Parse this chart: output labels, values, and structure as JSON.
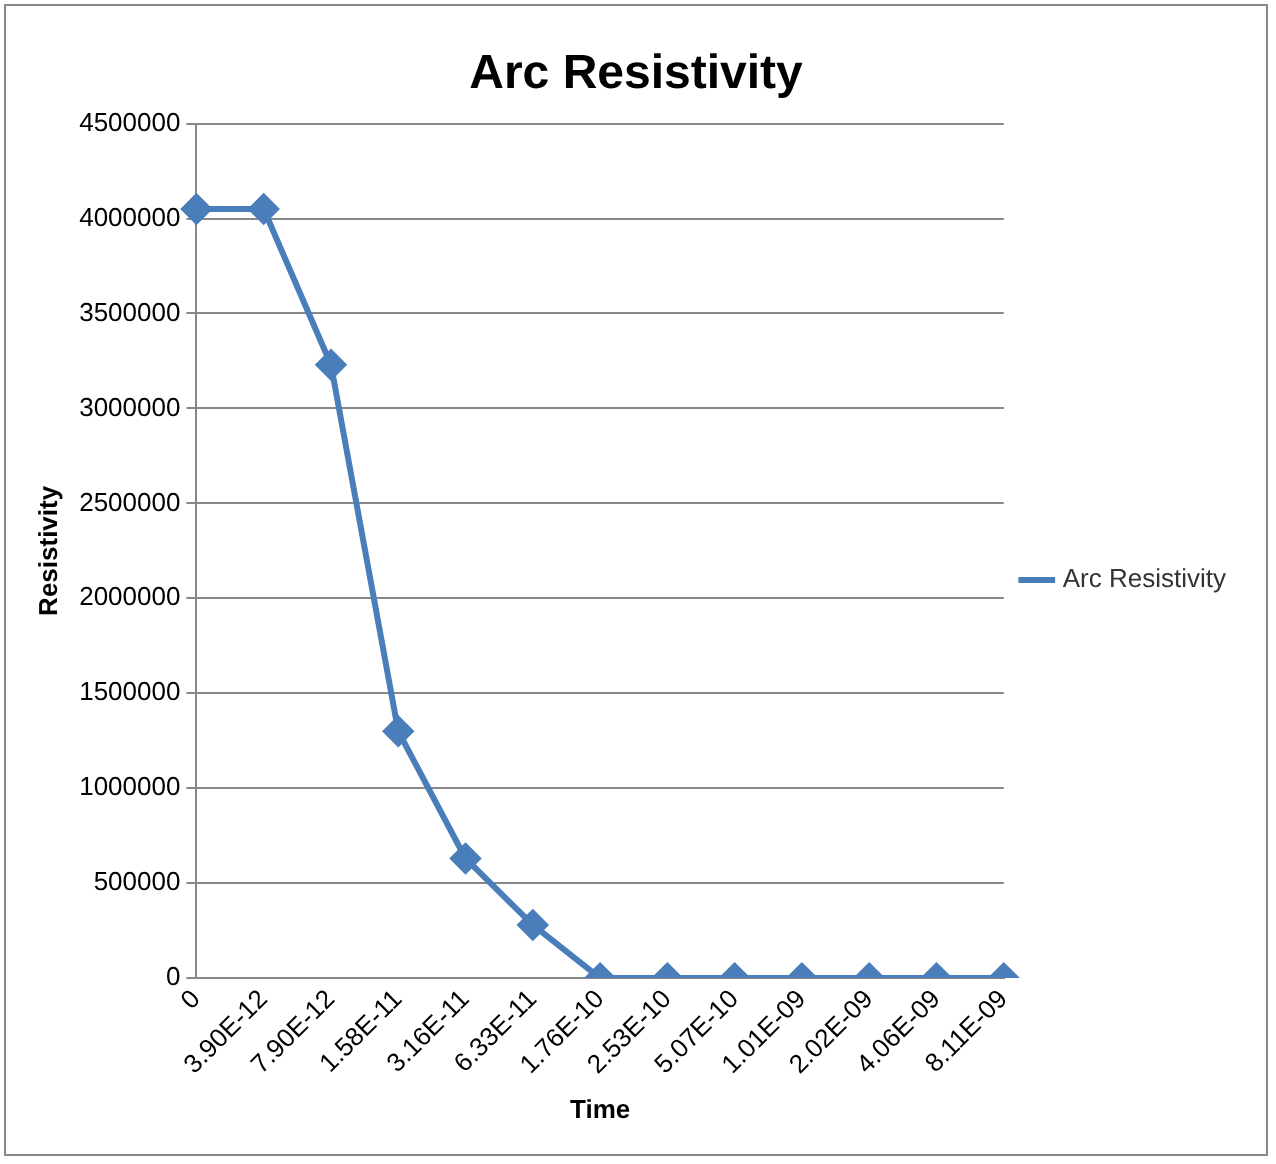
{
  "chart_data": {
    "type": "line",
    "title": "Arc Resistivity",
    "xlabel": "Time",
    "ylabel": "Resistivity",
    "categories": [
      "0",
      "3.90E-12",
      "7.90E-12",
      "1.58E-11",
      "3.16E-11",
      "6.33E-11",
      "1.76E-10",
      "2.53E-10",
      "5.07E-10",
      "1.01E-09",
      "2.02E-09",
      "4.06E-09",
      "8.11E-09"
    ],
    "series": [
      {
        "name": "Arc Resistivity",
        "color": "#4a7ebb",
        "values": [
          4050000,
          4050000,
          3230000,
          1300000,
          630000,
          280000,
          0,
          0,
          0,
          0,
          0,
          0,
          0
        ]
      }
    ],
    "ylim": [
      0,
      4500000
    ],
    "yticks": [
      0,
      500000,
      1000000,
      1500000,
      2000000,
      2500000,
      3000000,
      3500000,
      4000000,
      4500000
    ],
    "grid": "y",
    "legend": "right",
    "marker": "diamond",
    "line_style": "solid"
  }
}
